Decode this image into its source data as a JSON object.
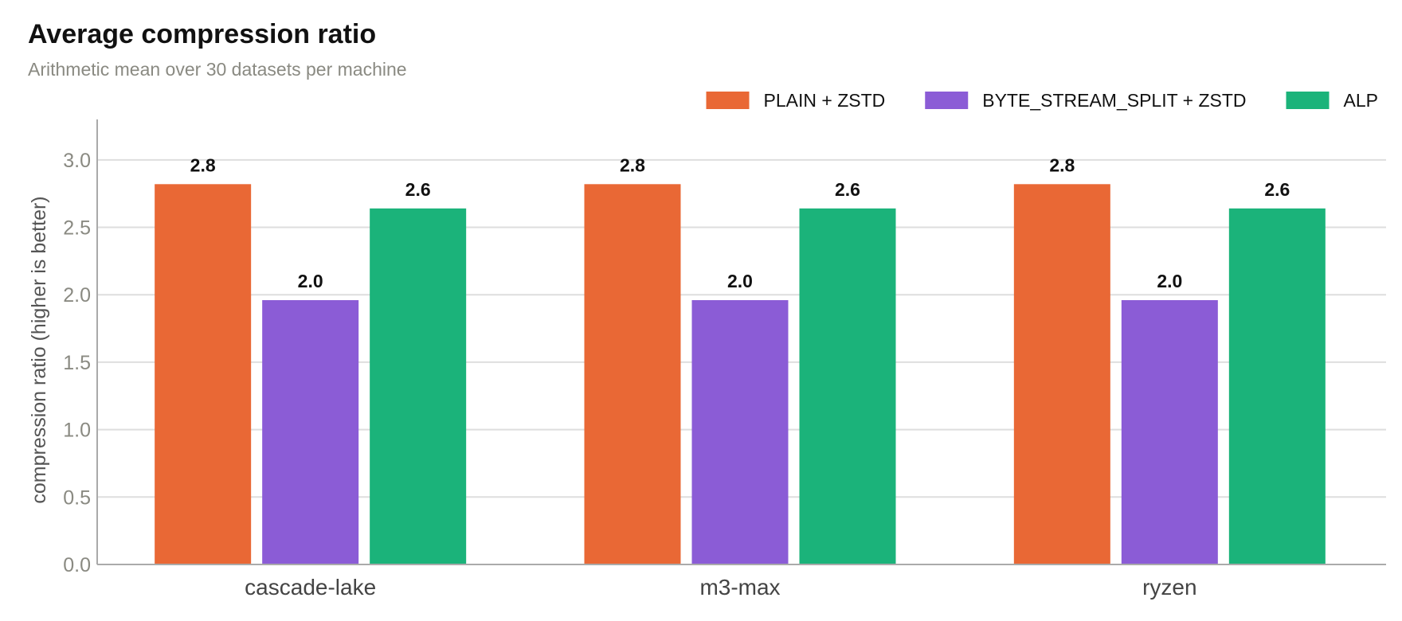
{
  "title": "Average compression ratio",
  "subtitle": "Arithmetic mean over 30 datasets per machine",
  "chart_data": {
    "type": "bar",
    "title": "Average compression ratio",
    "subtitle": "Arithmetic mean over 30 datasets per machine",
    "xlabel": "",
    "ylabel": "compression ratio (higher is better)",
    "ylim": [
      0,
      3.3
    ],
    "yticks": [
      "0.0",
      "0.5",
      "1.0",
      "1.5",
      "2.0",
      "2.5",
      "3.0"
    ],
    "grid": true,
    "legend_position": "top-right",
    "categories": [
      "cascade-lake",
      "m3-max",
      "ryzen"
    ],
    "series": [
      {
        "name": "PLAIN + ZSTD",
        "color": "#e96835",
        "values": [
          2.82,
          2.82,
          2.82
        ],
        "labels": [
          "2.8",
          "2.8",
          "2.8"
        ]
      },
      {
        "name": "BYTE_STREAM_SPLIT + ZSTD",
        "color": "#8b5cd6",
        "values": [
          1.96,
          1.96,
          1.96
        ],
        "labels": [
          "2.0",
          "2.0",
          "2.0"
        ]
      },
      {
        "name": "ALP",
        "color": "#1bb37a",
        "values": [
          2.64,
          2.64,
          2.64
        ],
        "labels": [
          "2.6",
          "2.6",
          "2.6"
        ]
      }
    ]
  }
}
